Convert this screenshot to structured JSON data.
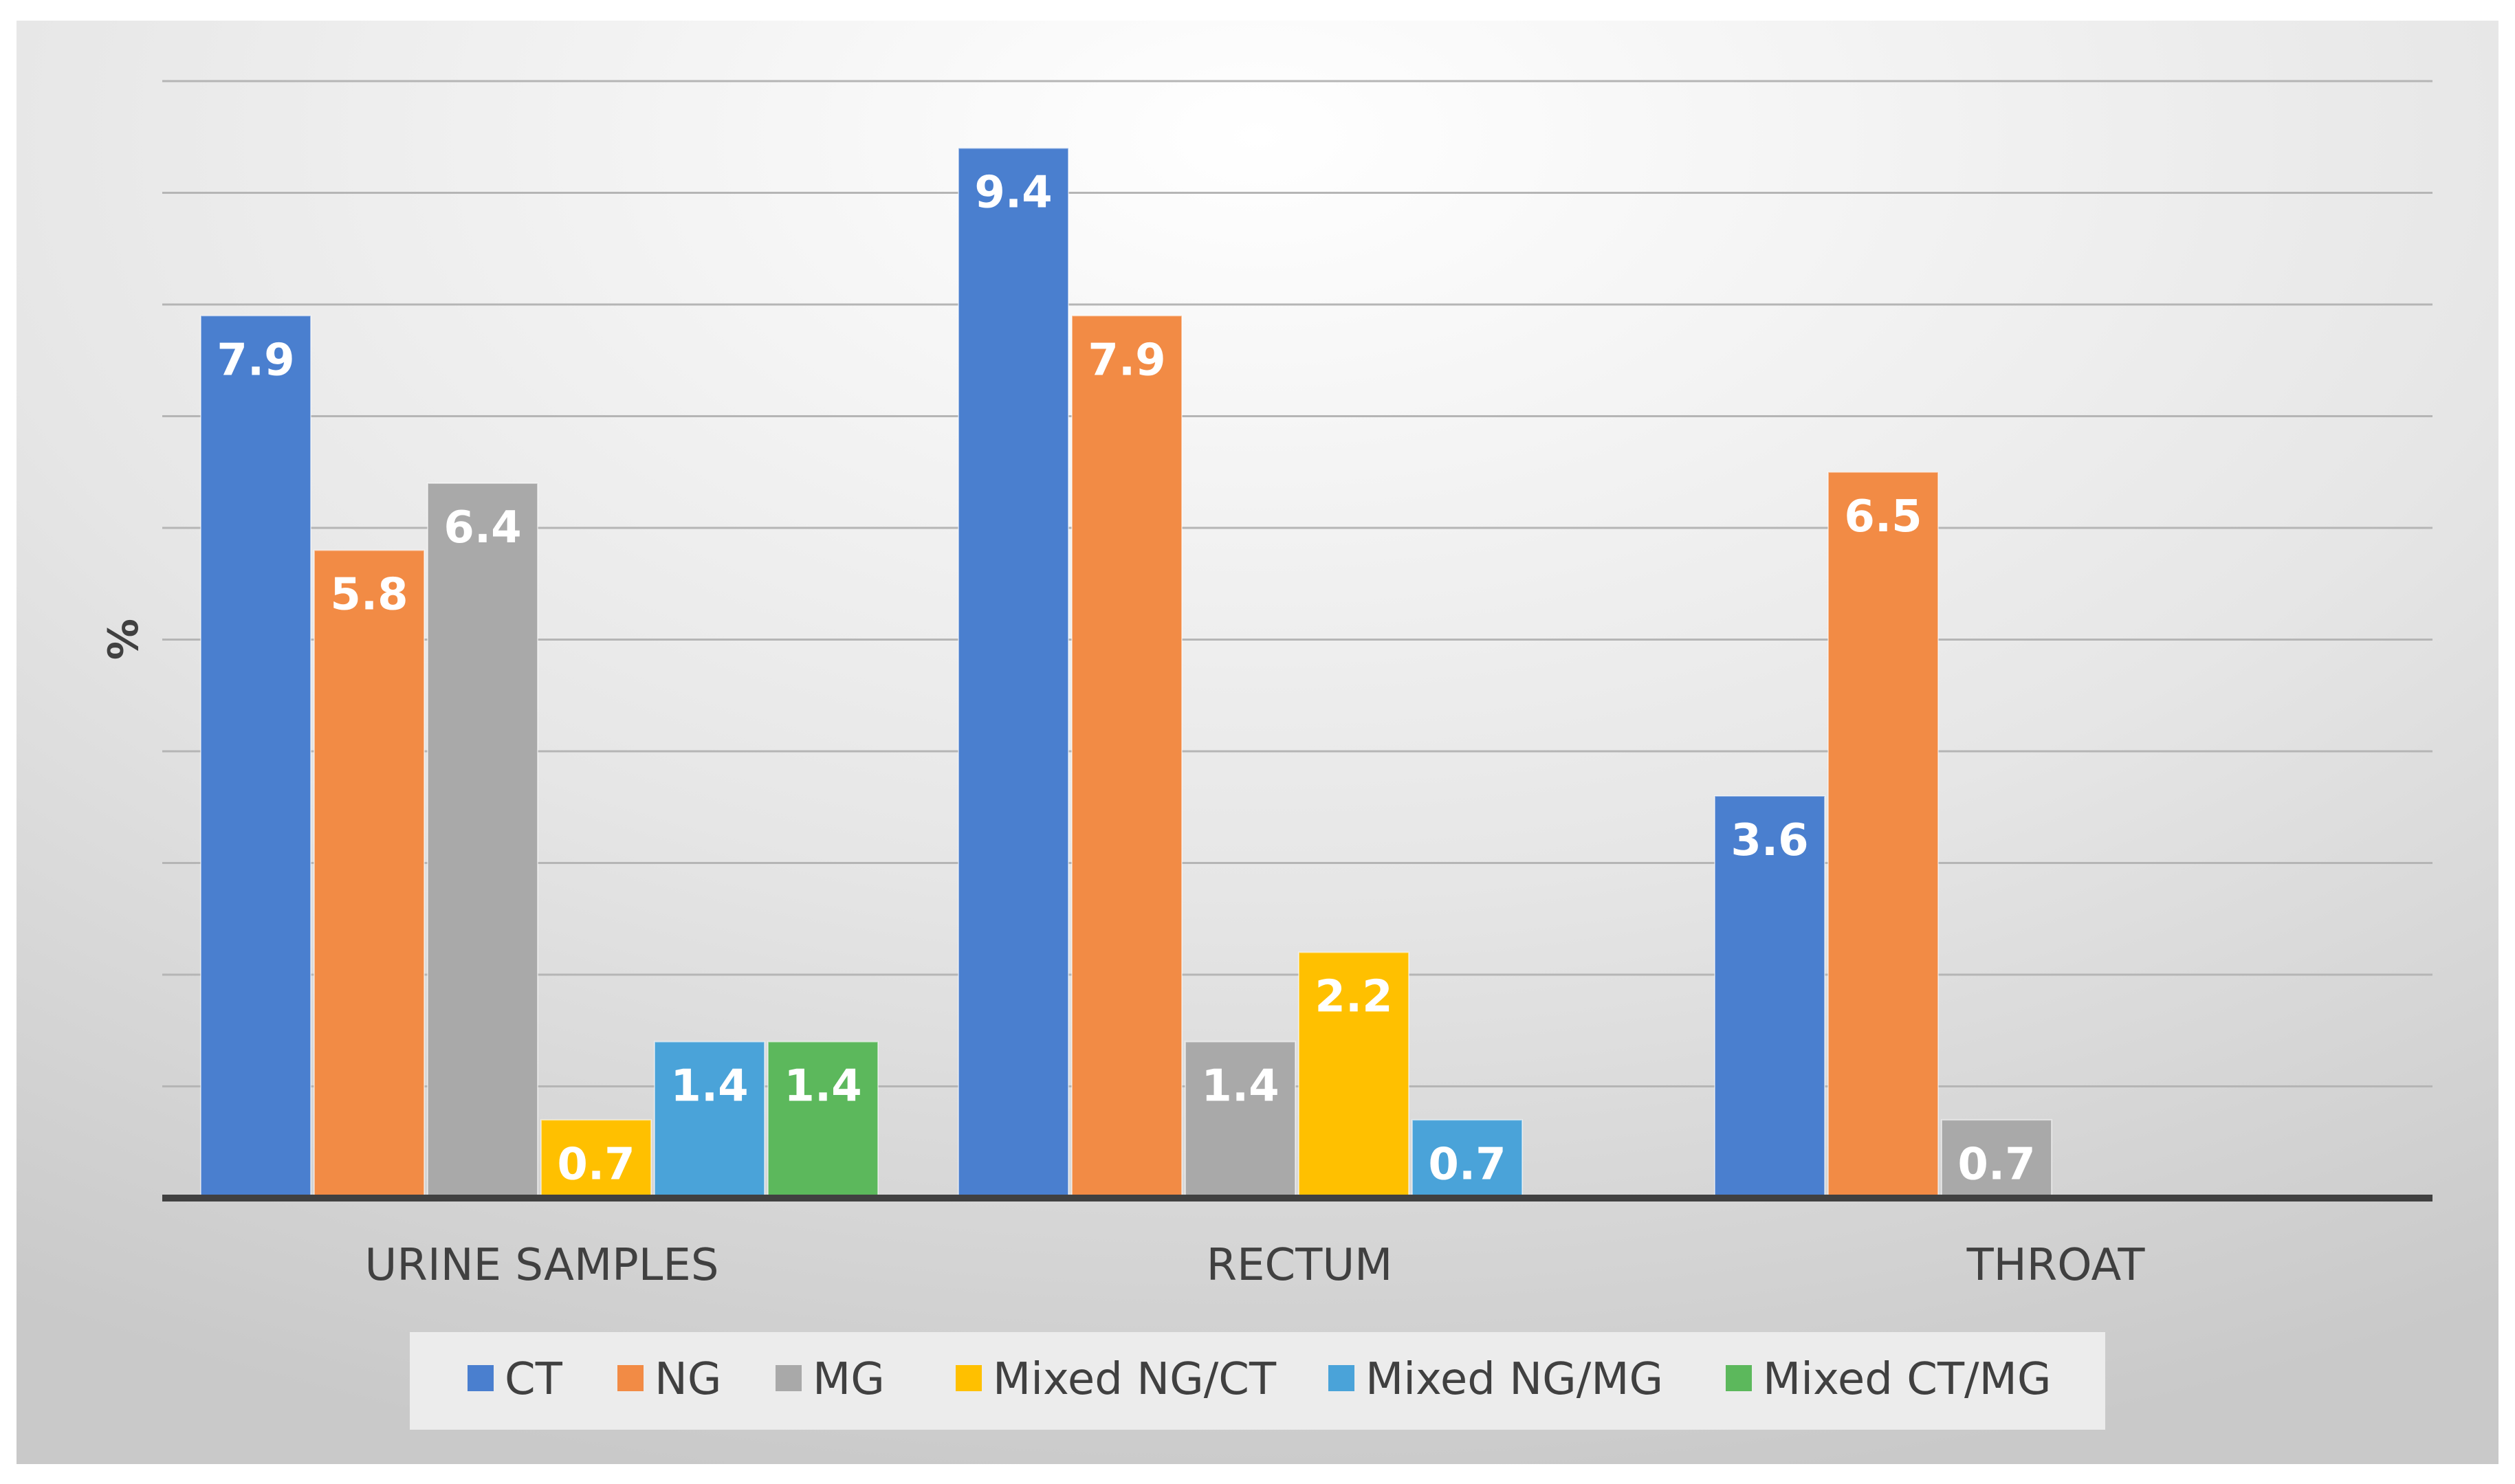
{
  "chart_data": {
    "type": "bar",
    "title": "",
    "xlabel": "",
    "ylabel": "%",
    "ylim": [
      0,
      10
    ],
    "grid": true,
    "legend_position": "bottom",
    "categories": [
      "URINE SAMPLES",
      "RECTUM",
      "THROAT"
    ],
    "series": [
      {
        "name": "CT",
        "color": "#4a7fcf",
        "values": [
          7.9,
          9.4,
          3.6
        ]
      },
      {
        "name": "NG",
        "color": "#f28b45",
        "values": [
          5.8,
          7.9,
          6.5
        ]
      },
      {
        "name": "MG",
        "color": "#a9a9a9",
        "values": [
          6.4,
          1.4,
          0.7
        ]
      },
      {
        "name": "Mixed NG/CT",
        "color": "#ffc000",
        "values": [
          0.7,
          2.2,
          null
        ]
      },
      {
        "name": "Mixed NG/MG",
        "color": "#4aa3d9",
        "values": [
          1.4,
          0.7,
          null
        ]
      },
      {
        "name": "Mixed CT/MG",
        "color": "#5cb85c",
        "values": [
          1.4,
          null,
          null
        ]
      }
    ]
  }
}
